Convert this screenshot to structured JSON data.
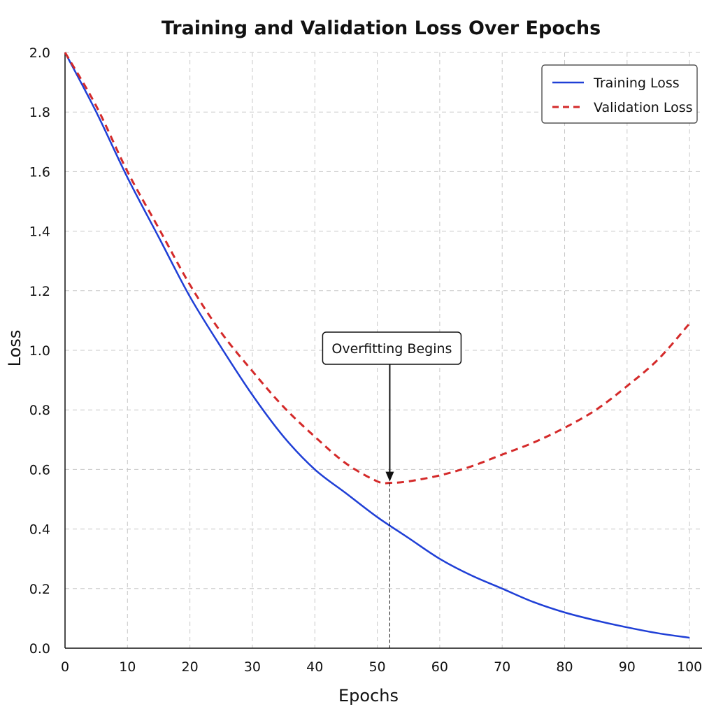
{
  "chart_data": {
    "type": "line",
    "title": "Training and Validation Loss Over Epochs",
    "xlabel": "Epochs",
    "ylabel": "Loss",
    "xlim": [
      0,
      102
    ],
    "ylim": [
      0,
      2.0
    ],
    "xticks": [
      "0",
      "10",
      "20",
      "30",
      "40",
      "50",
      "60",
      "70",
      "80",
      "90",
      "100"
    ],
    "yticks": [
      "0.0",
      "0.2",
      "0.4",
      "0.6",
      "0.8",
      "1.0",
      "1.2",
      "1.4",
      "1.6",
      "1.8",
      "2.0"
    ],
    "grid": true,
    "legend_position": "top-right",
    "series": [
      {
        "name": "Training Loss",
        "color": "#1f3fd6",
        "style": "solid",
        "x": [
          0,
          5,
          10,
          15,
          20,
          25,
          30,
          35,
          40,
          45,
          50,
          55,
          60,
          65,
          70,
          75,
          80,
          85,
          90,
          95,
          100
        ],
        "y": [
          2.0,
          1.8,
          1.58,
          1.38,
          1.18,
          1.01,
          0.85,
          0.71,
          0.6,
          0.52,
          0.44,
          0.37,
          0.3,
          0.245,
          0.2,
          0.155,
          0.12,
          0.093,
          0.07,
          0.05,
          0.035
        ]
      },
      {
        "name": "Validation Loss",
        "color": "#d42a2a",
        "style": "dashed",
        "x": [
          0,
          5,
          10,
          15,
          20,
          25,
          30,
          35,
          40,
          45,
          50,
          52,
          55,
          60,
          65,
          70,
          75,
          80,
          85,
          90,
          95,
          100
        ],
        "y": [
          2.0,
          1.82,
          1.6,
          1.41,
          1.22,
          1.06,
          0.93,
          0.81,
          0.71,
          0.62,
          0.56,
          0.555,
          0.56,
          0.58,
          0.61,
          0.65,
          0.69,
          0.74,
          0.8,
          0.88,
          0.97,
          1.09
        ]
      }
    ],
    "annotations": [
      {
        "text": "Overfitting Begins",
        "x": 52,
        "y": 0.555
      }
    ]
  }
}
